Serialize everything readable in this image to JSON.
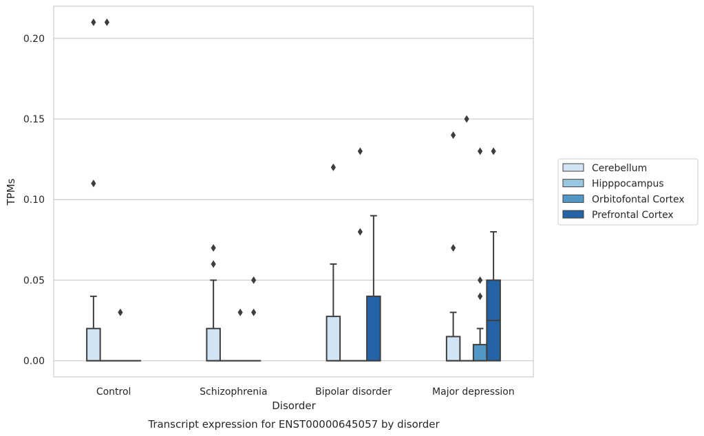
{
  "chart_data": {
    "type": "box",
    "title": "Transcript expression for ENST00000645057 by disorder",
    "xlabel": "Disorder",
    "ylabel": "TPMs",
    "ylim": [
      -0.01,
      0.22
    ],
    "yticks": [
      "0.00",
      "0.05",
      "0.10",
      "0.15",
      "0.20"
    ],
    "ytick_values": [
      0,
      0.05,
      0.1,
      0.15,
      0.2
    ],
    "grid": "horizontal",
    "legend_position": "right",
    "categories": [
      "Control",
      "Schizophrenia",
      "Bipolar disorder",
      "Major depression"
    ],
    "series": [
      {
        "name": "Cerebellum",
        "color": "#d2e3f3",
        "boxes": [
          {
            "q1": 0,
            "median": 0,
            "q3": 0.02,
            "whisker_low": 0,
            "whisker_high": 0.04,
            "outliers": [
              0.11,
              0.21
            ]
          },
          {
            "q1": 0,
            "median": 0,
            "q3": 0.02,
            "whisker_low": 0,
            "whisker_high": 0.05,
            "outliers": [
              0.06,
              0.07
            ]
          },
          {
            "q1": 0,
            "median": 0,
            "q3": 0.0275,
            "whisker_low": 0,
            "whisker_high": 0.06,
            "outliers": [
              0.12
            ]
          },
          {
            "q1": 0,
            "median": 0,
            "q3": 0.015,
            "whisker_low": 0,
            "whisker_high": 0.03,
            "outliers": [
              0.07,
              0.14
            ]
          }
        ]
      },
      {
        "name": "Hipppocampus",
        "color": "#9ac8e0",
        "boxes": [
          {
            "q1": 0,
            "median": 0,
            "q3": 0,
            "whisker_low": 0,
            "whisker_high": 0,
            "outliers": [
              0.21
            ]
          },
          {
            "q1": 0,
            "median": 0,
            "q3": 0,
            "whisker_low": 0,
            "whisker_high": 0,
            "outliers": []
          },
          {
            "q1": 0,
            "median": 0,
            "q3": 0,
            "whisker_low": 0,
            "whisker_high": 0,
            "outliers": []
          },
          {
            "q1": 0,
            "median": 0,
            "q3": 0,
            "whisker_low": 0,
            "whisker_high": 0,
            "outliers": [
              0.15
            ]
          }
        ]
      },
      {
        "name": "Orbitofontal Cortex",
        "color": "#5298c6",
        "boxes": [
          {
            "q1": 0,
            "median": 0,
            "q3": 0,
            "whisker_low": 0,
            "whisker_high": 0,
            "outliers": [
              0.03
            ]
          },
          {
            "q1": 0,
            "median": 0,
            "q3": 0,
            "whisker_low": 0,
            "whisker_high": 0,
            "outliers": [
              0.03
            ]
          },
          {
            "q1": 0,
            "median": 0,
            "q3": 0,
            "whisker_low": 0,
            "whisker_high": 0,
            "outliers": [
              0.08,
              0.13
            ]
          },
          {
            "q1": 0,
            "median": 0,
            "q3": 0.01,
            "whisker_low": 0,
            "whisker_high": 0.02,
            "outliers": [
              0.04,
              0.05,
              0.13
            ]
          }
        ]
      },
      {
        "name": "Prefrontal Cortex",
        "color": "#2464a6",
        "boxes": [
          {
            "q1": 0,
            "median": 0,
            "q3": 0,
            "whisker_low": 0,
            "whisker_high": 0,
            "outliers": []
          },
          {
            "q1": 0,
            "median": 0,
            "q3": 0,
            "whisker_low": 0,
            "whisker_high": 0,
            "outliers": [
              0.03,
              0.05
            ]
          },
          {
            "q1": 0,
            "median": 0,
            "q3": 0.04,
            "whisker_low": 0,
            "whisker_high": 0.09,
            "outliers": []
          },
          {
            "q1": 0,
            "median": 0.025,
            "q3": 0.05,
            "whisker_low": 0,
            "whisker_high": 0.08,
            "outliers": [
              0.13
            ]
          }
        ]
      }
    ]
  }
}
